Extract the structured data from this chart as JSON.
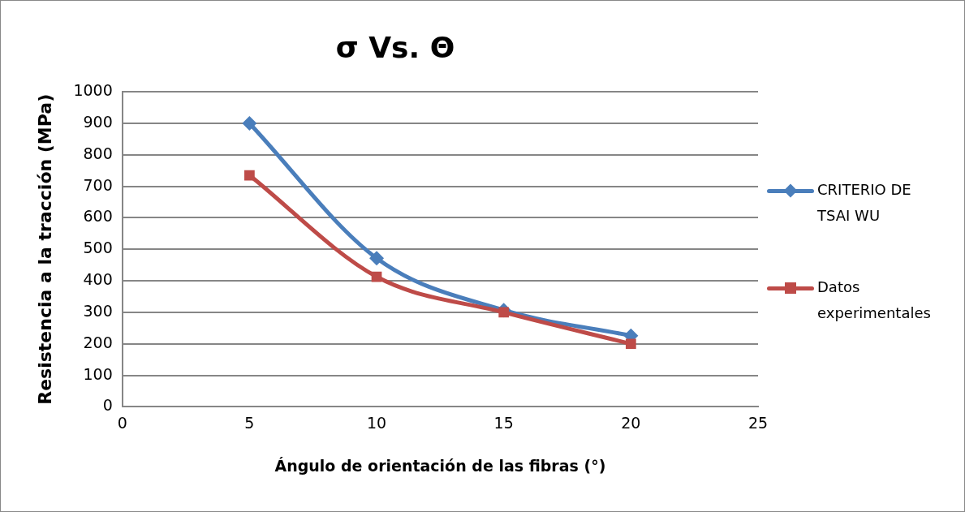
{
  "chart_data": {
    "type": "line",
    "title": "σ Vs. Θ",
    "xlabel": "Ángulo de orientación de las fibras (°)",
    "ylabel": "Resistencia a la tracción (MPa)",
    "x": [
      5,
      10,
      15,
      20
    ],
    "series": [
      {
        "name": "CRITERIO DE TSAI WU",
        "color": "#4a7ebb",
        "marker": "diamond",
        "values": [
          900,
          472,
          307,
          226
        ]
      },
      {
        "name": "Datos experimentales",
        "color": "#be4b48",
        "marker": "square",
        "values": [
          735,
          413,
          300,
          200
        ]
      }
    ],
    "xlim": [
      0,
      25
    ],
    "xticks": [
      0,
      5,
      10,
      15,
      20,
      25
    ],
    "ylim": [
      0,
      1000
    ],
    "yticks": [
      0,
      100,
      200,
      300,
      400,
      500,
      600,
      700,
      800,
      900,
      1000
    ],
    "grid": "y",
    "legend": "right",
    "line_style": "solid"
  }
}
